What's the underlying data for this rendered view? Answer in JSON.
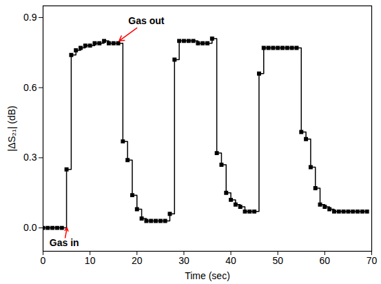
{
  "chart_data": {
    "type": "line",
    "x_label": "Time (sec)",
    "y_label": "|ΔS₂₁| (dB)",
    "xlim": [
      0,
      70
    ],
    "xticks": [
      0,
      10,
      20,
      30,
      40,
      50,
      60,
      70
    ],
    "ylim": [
      -0.1,
      0.95
    ],
    "yticks": [
      {
        "value": 0,
        "label": "0.0"
      },
      0.3,
      0.6,
      0.9
    ],
    "line_style": "step",
    "marker": "square",
    "color": "#000000",
    "x": [
      0,
      1,
      2,
      3,
      4,
      5,
      6,
      7,
      8,
      9,
      10,
      11,
      12,
      13,
      14,
      15,
      16,
      17,
      18,
      19,
      20,
      21,
      22,
      23,
      24,
      25,
      26,
      27,
      28,
      29,
      30,
      31,
      32,
      33,
      34,
      35,
      36,
      37,
      38,
      39,
      40,
      41,
      42,
      43,
      44,
      45,
      46,
      47,
      48,
      49,
      50,
      51,
      52,
      53,
      54,
      55,
      56,
      57,
      58,
      59,
      60,
      61,
      62,
      63,
      64,
      65,
      66,
      67,
      68,
      69
    ],
    "values": [
      0,
      0,
      0,
      0,
      0,
      0.25,
      0.74,
      0.76,
      0.77,
      0.78,
      0.78,
      0.79,
      0.79,
      0.8,
      0.79,
      0.79,
      0.79,
      0.37,
      0.29,
      0.14,
      0.08,
      0.04,
      0.03,
      0.03,
      0.03,
      0.03,
      0.03,
      0.06,
      0.72,
      0.8,
      0.8,
      0.8,
      0.8,
      0.79,
      0.79,
      0.79,
      0.81,
      0.32,
      0.27,
      0.15,
      0.12,
      0.1,
      0.09,
      0.07,
      0.07,
      0.07,
      0.66,
      0.77,
      0.77,
      0.77,
      0.77,
      0.77,
      0.77,
      0.77,
      0.77,
      0.41,
      0.38,
      0.26,
      0.17,
      0.1,
      0.09,
      0.08,
      0.07,
      0.07,
      0.07,
      0.07,
      0.07,
      0.07,
      0.07,
      0.07
    ],
    "annotations": [
      {
        "text": "Gas in",
        "x": 4.5,
        "y": -0.065,
        "target_x": 5.1,
        "target_y": 0.0,
        "color": "#ff0000"
      },
      {
        "text": "Gas out",
        "x": 22,
        "y": 0.885,
        "target_x": 16.2,
        "target_y": 0.8,
        "color": "#ff0000"
      }
    ]
  }
}
